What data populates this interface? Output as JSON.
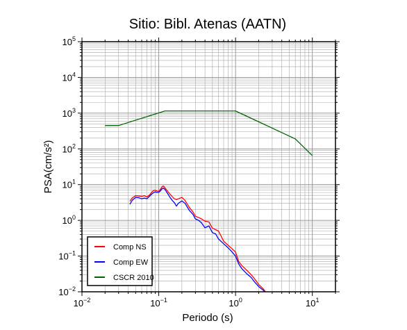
{
  "chart_data": {
    "type": "line",
    "title": "Sitio: Bibl. Atenas (AATN)",
    "xlabel": "Periodo (s)",
    "ylabel": "PSA(cm/s²)",
    "xscale": "log",
    "yscale": "log",
    "xlim": [
      0.01,
      20
    ],
    "ylim": [
      0.01,
      100000
    ],
    "grid": true,
    "legend_position": "bottom-left",
    "x_ticks": [
      {
        "value": 0.01,
        "base": "10",
        "exp": "−2"
      },
      {
        "value": 0.1,
        "base": "10",
        "exp": "−1"
      },
      {
        "value": 1,
        "base": "10",
        "exp": "0"
      },
      {
        "value": 10,
        "base": "10",
        "exp": "1"
      }
    ],
    "y_ticks": [
      {
        "value": 0.01,
        "base": "10",
        "exp": "−2"
      },
      {
        "value": 0.1,
        "base": "10",
        "exp": "−1"
      },
      {
        "value": 1,
        "base": "10",
        "exp": "0"
      },
      {
        "value": 10,
        "base": "10",
        "exp": "1"
      },
      {
        "value": 100,
        "base": "10",
        "exp": "2"
      },
      {
        "value": 1000,
        "base": "10",
        "exp": "3"
      },
      {
        "value": 10000,
        "base": "10",
        "exp": "4"
      },
      {
        "value": 100000,
        "base": "10",
        "exp": "5"
      }
    ],
    "series": [
      {
        "name": "Comp NS",
        "color": "#ff0000",
        "x": [
          0.042,
          0.045,
          0.05,
          0.055,
          0.06,
          0.065,
          0.07,
          0.075,
          0.08,
          0.085,
          0.09,
          0.095,
          0.1,
          0.105,
          0.11,
          0.115,
          0.12,
          0.13,
          0.14,
          0.15,
          0.16,
          0.17,
          0.18,
          0.2,
          0.22,
          0.25,
          0.28,
          0.3,
          0.33,
          0.36,
          0.4,
          0.45,
          0.5,
          0.55,
          0.6,
          0.7,
          0.8,
          0.9,
          1.0,
          1.1,
          1.2,
          1.4,
          1.6,
          1.8,
          2.0,
          2.3,
          2.5
        ],
        "y": [
          3.4,
          4.2,
          4.9,
          4.8,
          4.7,
          4.9,
          4.5,
          5.0,
          5.9,
          6.8,
          7.0,
          6.6,
          6.5,
          7.3,
          8.6,
          9.2,
          8.2,
          6.6,
          5.4,
          4.6,
          4.0,
          3.8,
          4.0,
          4.4,
          3.6,
          2.3,
          1.7,
          1.3,
          1.2,
          1.1,
          0.95,
          0.9,
          0.6,
          0.55,
          0.5,
          0.26,
          0.2,
          0.16,
          0.13,
          0.07,
          0.055,
          0.04,
          0.03,
          0.022,
          0.016,
          0.012,
          0.0095
        ]
      },
      {
        "name": "Comp EW",
        "color": "#0000ff",
        "x": [
          0.042,
          0.045,
          0.05,
          0.055,
          0.06,
          0.065,
          0.07,
          0.075,
          0.08,
          0.085,
          0.09,
          0.095,
          0.1,
          0.105,
          0.11,
          0.115,
          0.12,
          0.13,
          0.14,
          0.15,
          0.16,
          0.17,
          0.18,
          0.2,
          0.22,
          0.25,
          0.28,
          0.3,
          0.33,
          0.36,
          0.4,
          0.45,
          0.5,
          0.55,
          0.6,
          0.7,
          0.8,
          0.9,
          1.0,
          1.1,
          1.2,
          1.4,
          1.6,
          1.8,
          2.0,
          2.3,
          2.5
        ],
        "y": [
          2.8,
          3.6,
          4.4,
          4.3,
          4.0,
          4.2,
          4.0,
          4.6,
          5.3,
          5.9,
          6.3,
          6.0,
          6.1,
          6.6,
          7.6,
          8.0,
          7.4,
          5.7,
          4.4,
          3.6,
          3.1,
          2.5,
          3.0,
          3.5,
          3.0,
          1.9,
          1.45,
          1.1,
          1.0,
          0.85,
          0.62,
          0.7,
          0.45,
          0.42,
          0.3,
          0.22,
          0.17,
          0.13,
          0.1,
          0.06,
          0.045,
          0.032,
          0.025,
          0.018,
          0.014,
          0.011,
          0.009
        ]
      },
      {
        "name": "CSCR 2010",
        "color": "#006400",
        "x": [
          0.02,
          0.03,
          0.12,
          1.0,
          6.0,
          10.0
        ],
        "y": [
          450,
          450,
          1150,
          1150,
          190,
          65
        ]
      }
    ]
  }
}
